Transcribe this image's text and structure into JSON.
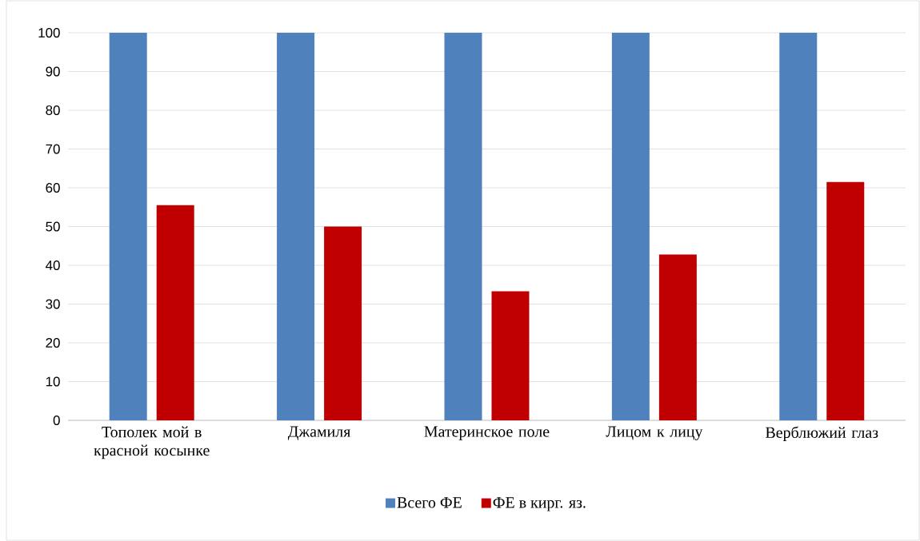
{
  "chart_data": {
    "type": "bar",
    "categories": [
      "Тополек мой в красной косынке",
      "Джамиля",
      "Материнское поле",
      "Лицом к лицу",
      "Верблюжий глаз"
    ],
    "series": [
      {
        "name": "Всего ФЕ",
        "color": "#4f81bd",
        "values": [
          100,
          100,
          100,
          100,
          100
        ]
      },
      {
        "name": "ФЕ в кирг. яз.",
        "color": "#c00000",
        "values": [
          55.5,
          50,
          33.3,
          42.8,
          61.5
        ]
      }
    ],
    "ylim": [
      0,
      100
    ],
    "yticks": [
      0,
      10,
      20,
      30,
      40,
      50,
      60,
      70,
      80,
      90,
      100
    ],
    "grid": "y",
    "legend": "bottom"
  }
}
